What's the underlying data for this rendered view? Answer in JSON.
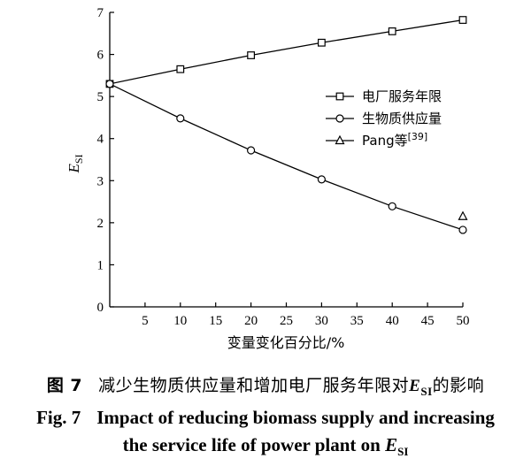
{
  "chart_data": {
    "type": "line",
    "x": [
      0,
      10,
      20,
      30,
      40,
      50
    ],
    "xlim": [
      0,
      50
    ],
    "ylim": [
      0,
      7
    ],
    "xticks": [
      5,
      10,
      15,
      20,
      25,
      30,
      35,
      40,
      45,
      50
    ],
    "yticks": [
      0,
      1,
      2,
      3,
      4,
      5,
      6,
      7
    ],
    "xlabel": "变量变化百分比/%",
    "ylabel": "E",
    "ylabel_sub": "SI",
    "grid": false,
    "legend_position": "right-middle",
    "series": [
      {
        "name": "电厂服务年限",
        "marker": "square",
        "x": [
          0,
          10,
          20,
          30,
          40,
          50
        ],
        "values": [
          5.3,
          5.65,
          5.98,
          6.28,
          6.55,
          6.82
        ]
      },
      {
        "name": "生物质供应量",
        "marker": "circle",
        "x": [
          0,
          10,
          20,
          30,
          40,
          50
        ],
        "values": [
          5.3,
          4.48,
          3.72,
          3.03,
          2.39,
          1.83
        ]
      },
      {
        "name": "Pang等[39]",
        "marker": "triangle",
        "x": [
          50
        ],
        "values": [
          2.15
        ]
      }
    ]
  },
  "caption": {
    "cn_label": "图 7",
    "cn_text": "减少生物质供应量和增加电厂服务年限对",
    "cn_text_end": "的影响",
    "en_label": "Fig. 7",
    "en_line1": "Impact of reducing biomass supply and increasing",
    "en_line2": "the service life of power plant on",
    "esi_main": "E",
    "esi_sub": "SI"
  }
}
